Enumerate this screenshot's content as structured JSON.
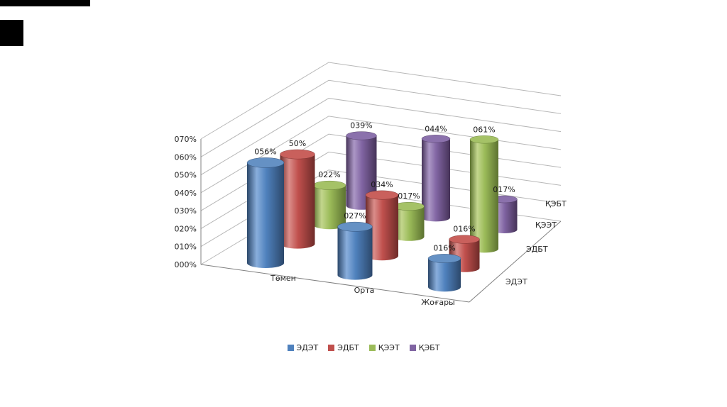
{
  "page": {
    "background": "#ffffff"
  },
  "chart_data": {
    "type": "bar",
    "subtype": "3d-cylinder",
    "unit": "%",
    "title": "",
    "categories": [
      "Төмен",
      "Орта",
      "Жоғары"
    ],
    "series": [
      {
        "name": "ЭДЭТ",
        "color": "#4F81BD",
        "values": [
          56,
          27,
          16
        ],
        "labels": [
          "056%",
          "027%",
          "016%"
        ],
        "shade": {
          "light": "#89AEDC",
          "dark": "#2C486B",
          "top": "#6591C4"
        }
      },
      {
        "name": "ЭДБТ",
        "color": "#C0504D",
        "values": [
          50,
          34,
          16
        ],
        "labels": [
          "50%",
          "034%",
          "016%"
        ],
        "shade": {
          "light": "#DA8D8A",
          "dark": "#6E2B29",
          "top": "#C9605C"
        }
      },
      {
        "name": "ҚЭЭТ",
        "color": "#9BBB59",
        "values": [
          22,
          17,
          61
        ],
        "labels": [
          "022%",
          "017%",
          "061%"
        ],
        "shade": {
          "light": "#C3D68D",
          "dark": "#5C7230",
          "top": "#A5C267"
        }
      },
      {
        "name": "ҚЭБТ",
        "color": "#8064A2",
        "values": [
          39,
          44,
          17
        ],
        "labels": [
          "039%",
          "044%",
          "017%"
        ],
        "shade": {
          "light": "#AC97C6",
          "dark": "#463358",
          "top": "#8B71AC"
        }
      }
    ],
    "value_axis": {
      "ticks": [
        "000%",
        "010%",
        "020%",
        "030%",
        "040%",
        "050%",
        "060%",
        "070%"
      ],
      "min": 0,
      "max": 70,
      "step": 10
    },
    "depth_axis_labels": [
      "ЭДЭТ",
      "ЭДБТ",
      "ҚЭЭТ",
      "ҚЭБТ"
    ],
    "legend": {
      "position": "bottom",
      "entries": [
        "ЭДЭТ",
        "ЭДБТ",
        "ҚЭЭТ",
        "ҚЭБТ"
      ]
    },
    "grid": true,
    "colors": {
      "grid": "#b7b7b7",
      "axis": "#808080",
      "text": "#262626"
    }
  }
}
